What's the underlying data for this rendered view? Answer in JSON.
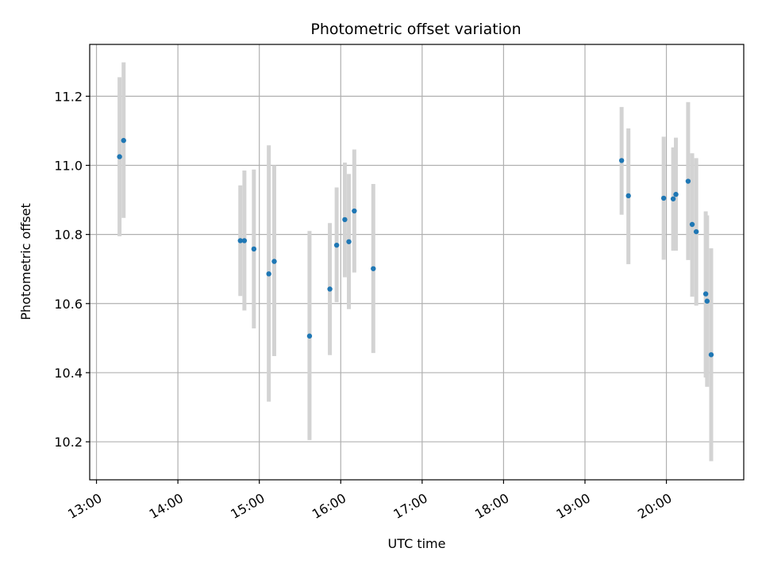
{
  "chart_data": {
    "type": "scatter",
    "title": "Photometric offset variation",
    "xlabel": "UTC time",
    "ylabel": "Photometric offset",
    "xlim": [
      "12:55",
      "20:57"
    ],
    "ylim": [
      10.09,
      11.35
    ],
    "x_ticks": [
      "13:00",
      "14:00",
      "15:00",
      "16:00",
      "17:00",
      "18:00",
      "19:00",
      "20:00"
    ],
    "y_ticks": [
      10.2,
      10.4,
      10.6,
      10.8,
      11.0,
      11.2
    ],
    "grid": true,
    "marker_color": "#1f77b4",
    "errorbar_color": "#d3d3d3",
    "points": [
      {
        "x": "13:17",
        "y": 11.025,
        "yerr_low": 10.795,
        "yerr_high": 11.255
      },
      {
        "x": "13:20",
        "y": 11.072,
        "yerr_low": 10.848,
        "yerr_high": 11.298
      },
      {
        "x": "14:46",
        "y": 10.782,
        "yerr_low": 10.622,
        "yerr_high": 10.942
      },
      {
        "x": "14:49",
        "y": 10.782,
        "yerr_low": 10.58,
        "yerr_high": 10.985
      },
      {
        "x": "14:56",
        "y": 10.758,
        "yerr_low": 10.528,
        "yerr_high": 10.988
      },
      {
        "x": "15:07",
        "y": 10.686,
        "yerr_low": 10.316,
        "yerr_high": 11.058
      },
      {
        "x": "15:11",
        "y": 10.722,
        "yerr_low": 10.448,
        "yerr_high": 11.0
      },
      {
        "x": "15:37",
        "y": 10.506,
        "yerr_low": 10.205,
        "yerr_high": 10.81
      },
      {
        "x": "15:52",
        "y": 10.642,
        "yerr_low": 10.451,
        "yerr_high": 10.833
      },
      {
        "x": "15:57",
        "y": 10.769,
        "yerr_low": 10.604,
        "yerr_high": 10.936
      },
      {
        "x": "16:03",
        "y": 10.843,
        "yerr_low": 10.676,
        "yerr_high": 11.008
      },
      {
        "x": "16:06",
        "y": 10.779,
        "yerr_low": 10.584,
        "yerr_high": 10.975
      },
      {
        "x": "16:10",
        "y": 10.868,
        "yerr_low": 10.69,
        "yerr_high": 11.046
      },
      {
        "x": "16:24",
        "y": 10.701,
        "yerr_low": 10.457,
        "yerr_high": 10.946
      },
      {
        "x": "19:27",
        "y": 11.014,
        "yerr_low": 10.857,
        "yerr_high": 11.169
      },
      {
        "x": "19:32",
        "y": 10.912,
        "yerr_low": 10.714,
        "yerr_high": 11.107
      },
      {
        "x": "19:58",
        "y": 10.905,
        "yerr_low": 10.727,
        "yerr_high": 11.083
      },
      {
        "x": "20:05",
        "y": 10.903,
        "yerr_low": 10.753,
        "yerr_high": 11.052
      },
      {
        "x": "20:07",
        "y": 10.916,
        "yerr_low": 10.753,
        "yerr_high": 11.08
      },
      {
        "x": "20:16",
        "y": 10.954,
        "yerr_low": 10.726,
        "yerr_high": 11.183
      },
      {
        "x": "20:19",
        "y": 10.829,
        "yerr_low": 10.62,
        "yerr_high": 11.035
      },
      {
        "x": "20:22",
        "y": 10.808,
        "yerr_low": 10.594,
        "yerr_high": 11.021
      },
      {
        "x": "20:29",
        "y": 10.628,
        "yerr_low": 10.386,
        "yerr_high": 10.867
      },
      {
        "x": "20:30",
        "y": 10.607,
        "yerr_low": 10.359,
        "yerr_high": 10.855
      },
      {
        "x": "20:33",
        "y": 10.452,
        "yerr_low": 10.144,
        "yerr_high": 10.76
      }
    ]
  }
}
